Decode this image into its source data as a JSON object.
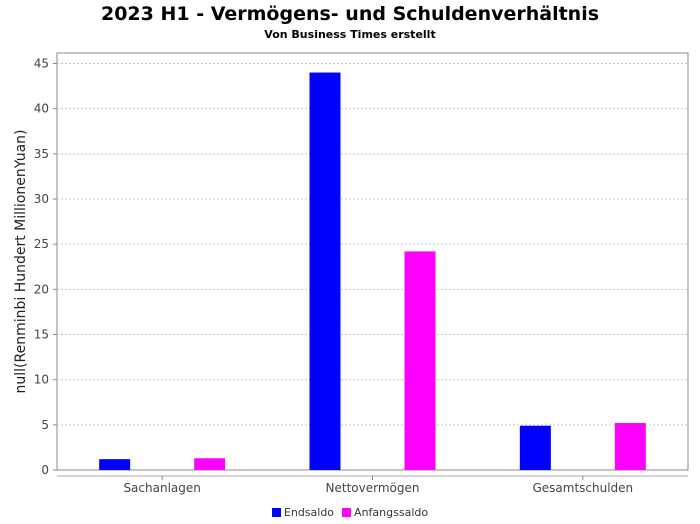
{
  "chart_data": {
    "type": "bar",
    "title": "2023 H1 - Vermögens- und Schuldenverhältnis",
    "subtitle": "Von Business Times erstellt",
    "xlabel": "",
    "ylabel": "null(Renminbi Hundert MillionenYuan)",
    "ylim": [
      0,
      45
    ],
    "yticks": [
      0,
      5,
      10,
      15,
      20,
      25,
      30,
      35,
      40,
      45
    ],
    "grid": true,
    "legend_position": "bottom",
    "categories": [
      "Sachanlagen",
      "Nettovermögen",
      "Gesamtschulden"
    ],
    "series": [
      {
        "name": "Endsaldo",
        "color": "#0000ff",
        "values": [
          1.2,
          44.0,
          4.9
        ]
      },
      {
        "name": "Anfangssaldo",
        "color": "#ff00ff",
        "values": [
          1.3,
          24.2,
          5.2
        ]
      }
    ]
  }
}
